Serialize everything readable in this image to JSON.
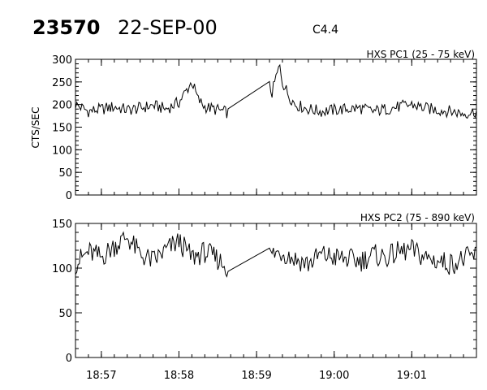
{
  "header": {
    "event_id": "23570",
    "date": "22-SEP-00",
    "flare_class": "C4.4"
  },
  "chart_data": [
    {
      "type": "line",
      "title": "HXS PC1 (25 - 75 keV)",
      "ylabel": "CTS/SEC",
      "xlabel": "",
      "xlim": [
        "18:56:40",
        "19:01:50"
      ],
      "ylim": [
        0,
        300
      ],
      "yticks": [
        0,
        50,
        100,
        150,
        200,
        250,
        300
      ],
      "xticks": [
        "18:57",
        "18:58",
        "18:59",
        "19:00",
        "19:01"
      ],
      "x_tick_labels_shown": false,
      "grid": false,
      "data_gap": [
        "18:58:38",
        "18:59:10"
      ],
      "series": [
        {
          "x": [
            "18:56:40",
            "18:56:50",
            "18:57:00",
            "18:57:10",
            "18:57:20",
            "18:57:30",
            "18:57:40",
            "18:57:50",
            "18:58:00",
            "18:58:10",
            "18:58:15",
            "18:58:20",
            "18:58:30",
            "18:58:38",
            "18:59:10",
            "18:59:12",
            "18:59:15",
            "18:59:18",
            "18:59:20",
            "18:59:25",
            "18:59:30",
            "18:59:40",
            "18:59:50",
            "19:00:00",
            "19:00:10",
            "19:00:20",
            "19:00:30",
            "19:00:40",
            "19:00:50",
            "19:01:00",
            "19:01:10",
            "19:01:20",
            "19:01:30",
            "19:01:40",
            "19:01:50"
          ],
          "values": [
            200,
            185,
            190,
            195,
            188,
            192,
            198,
            190,
            205,
            250,
            210,
            195,
            188,
            182,
            240,
            225,
            260,
            285,
            250,
            220,
            200,
            190,
            185,
            188,
            190,
            192,
            185,
            190,
            195,
            200,
            192,
            188,
            185,
            180,
            185
          ]
        }
      ]
    },
    {
      "type": "line",
      "title": "HXS PC2 (75 - 890 keV)",
      "ylabel": "",
      "xlabel": "",
      "xlim": [
        "18:56:40",
        "19:01:50"
      ],
      "ylim": [
        0,
        150
      ],
      "yticks": [
        0,
        50,
        100,
        150
      ],
      "xticks": [
        "18:57",
        "18:58",
        "18:59",
        "19:00",
        "19:01"
      ],
      "x_tick_labels_shown": true,
      "grid": false,
      "data_gap": [
        "18:58:38",
        "18:59:10"
      ],
      "series": [
        {
          "x": [
            "18:56:40",
            "18:56:50",
            "18:57:00",
            "18:57:10",
            "18:57:20",
            "18:57:30",
            "18:57:40",
            "18:57:50",
            "18:58:00",
            "18:58:10",
            "18:58:20",
            "18:58:30",
            "18:58:38",
            "18:59:10",
            "18:59:20",
            "18:59:30",
            "18:59:40",
            "18:59:50",
            "19:00:00",
            "19:00:10",
            "19:00:20",
            "19:00:30",
            "19:00:40",
            "19:00:50",
            "19:01:00",
            "19:01:10",
            "19:01:20",
            "19:01:30",
            "19:01:40",
            "19:01:50"
          ],
          "values": [
            105,
            118,
            112,
            125,
            135,
            115,
            108,
            120,
            130,
            112,
            118,
            110,
            100,
            115,
            118,
            110,
            105,
            115,
            112,
            110,
            108,
            115,
            112,
            118,
            120,
            112,
            108,
            105,
            110,
            115
          ]
        }
      ]
    }
  ]
}
